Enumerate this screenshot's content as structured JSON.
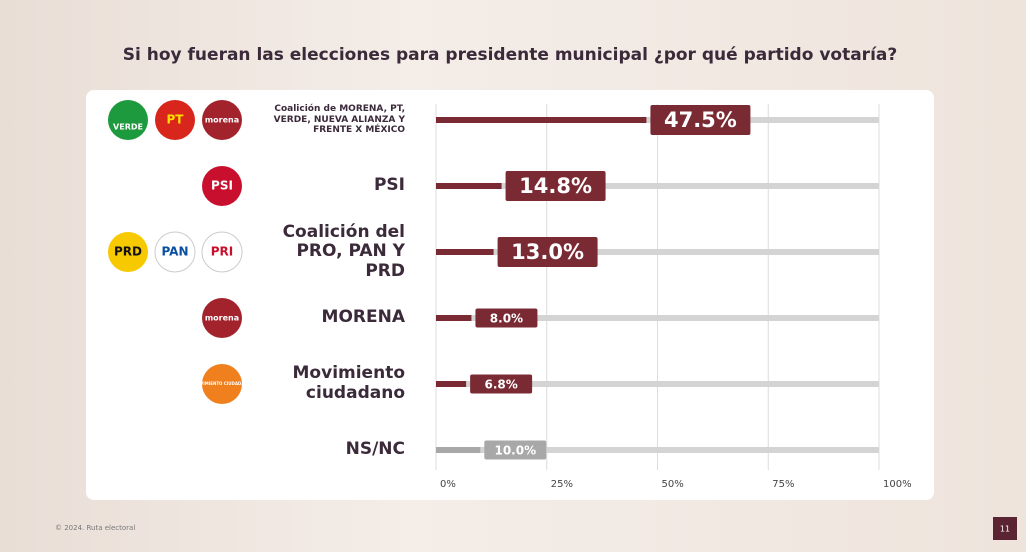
{
  "chart_data": {
    "type": "bar",
    "orientation": "horizontal",
    "title": "Si hoy fueran las elecciones para presidente municipal ¿por qué partido votaría?",
    "categories": [
      "Coalición de MORENA, PT, VERDE, NUEVA ALIANZA Y FRENTE X MÉXICO",
      "PSI",
      "Coalición del PRO, PAN Y PRD",
      "MORENA",
      "Movimiento ciudadano",
      "NS/NC"
    ],
    "values": [
      47.5,
      14.8,
      13.0,
      8.0,
      6.8,
      10.0
    ],
    "value_labels": [
      "47.5%",
      "14.8%",
      "13.0%",
      "8.0%",
      "6.8%",
      "10.0%"
    ],
    "colors": [
      "#7a2a33",
      "#7a2a33",
      "#7a2a33",
      "#7a2a33",
      "#7a2a33",
      "#a8a8a8"
    ],
    "xlim": [
      0,
      100
    ],
    "xticks": [
      {
        "value": 0,
        "label": "0%"
      },
      {
        "value": 25,
        "label": "25%"
      },
      {
        "value": 50,
        "label": "50%"
      },
      {
        "value": 75,
        "label": "75%"
      },
      {
        "value": 100,
        "label": "100%"
      }
    ],
    "grid": true
  },
  "logos": [
    [
      "VERDE",
      "PT",
      "morena"
    ],
    [
      "PSI"
    ],
    [
      "PRD",
      "PAN",
      "PRI"
    ],
    [
      "morena"
    ],
    [
      "MOVIMIENTO CIUDADANO"
    ],
    []
  ],
  "footer": {
    "copyright": "© 2024. Ruta electoral",
    "page": "11"
  }
}
